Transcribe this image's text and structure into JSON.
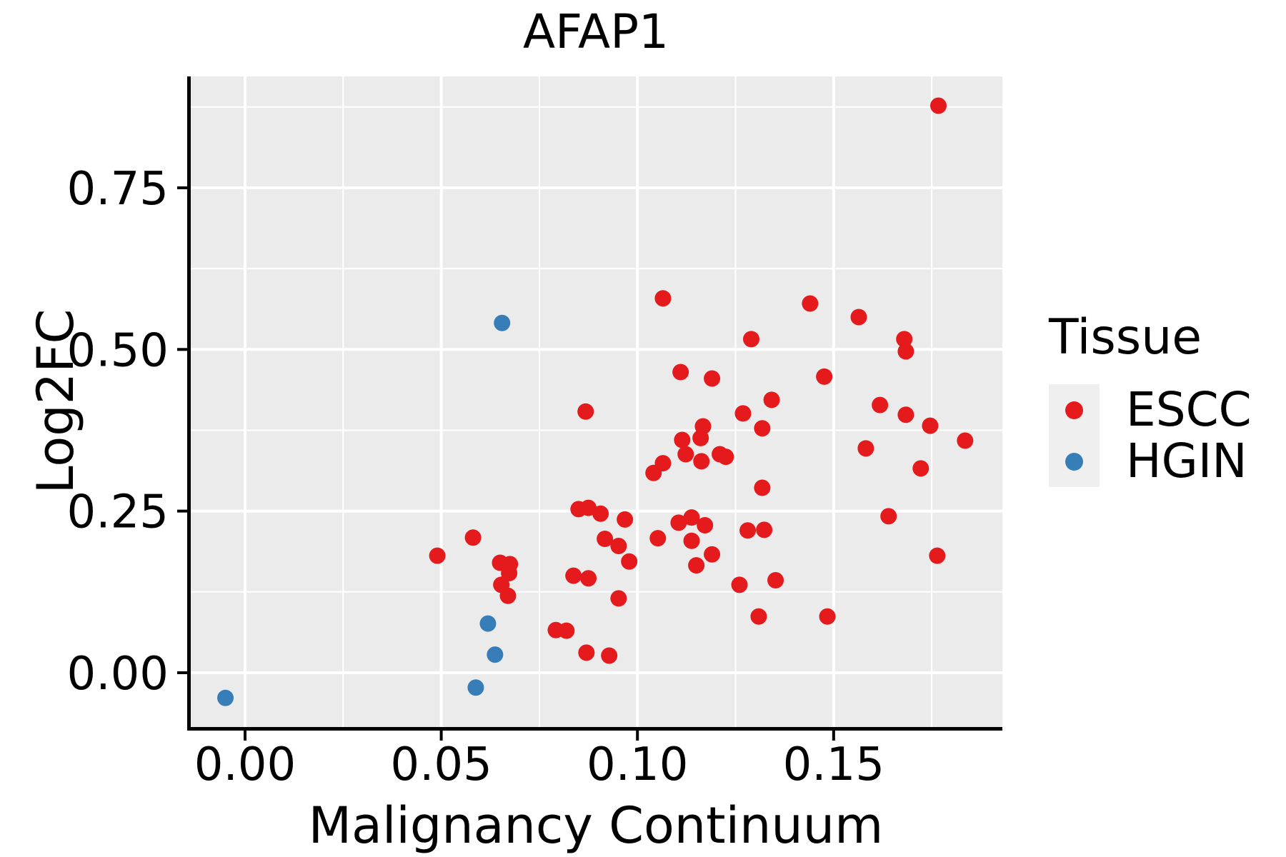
{
  "chart_data": {
    "type": "scatter",
    "title": "AFAP1",
    "xlabel": "Malignancy Continuum",
    "ylabel": "Log2FC",
    "x_axis": {
      "range": [
        -0.0142,
        0.193
      ],
      "ticks": [
        0,
        0.05,
        0.1,
        0.15
      ],
      "tick_labels": [
        "0.00",
        "0.05",
        "0.10",
        "0.15"
      ],
      "minor_ticks": [
        0.025,
        0.075,
        0.125,
        0.175
      ]
    },
    "y_axis": {
      "range": [
        -0.084,
        0.9223
      ],
      "ticks": [
        0,
        0.25,
        0.5,
        0.75
      ],
      "tick_labels": [
        "0.00",
        "0.25",
        "0.50",
        "0.75"
      ],
      "minor_ticks": [
        0.125,
        0.375,
        0.625,
        0.875
      ]
    },
    "legend": {
      "title": "Tissue",
      "entries": [
        {
          "label": "ESCC",
          "color": "#E41A1C"
        },
        {
          "label": "HGIN",
          "color": "#377EB8"
        }
      ]
    },
    "style": {
      "panel_bg": "#EBEBEB",
      "grid_color": "#FFFFFF",
      "axis_color": "#000000",
      "point_radius": 11.5
    },
    "series": [
      {
        "name": "ESCC",
        "color": "#E41A1C",
        "points": [
          [
            0.1767,
            0.877
          ],
          [
            0.1065,
            0.579
          ],
          [
            0.144,
            0.571
          ],
          [
            0.1564,
            0.55
          ],
          [
            0.168,
            0.516
          ],
          [
            0.1684,
            0.497
          ],
          [
            0.129,
            0.516
          ],
          [
            0.111,
            0.465
          ],
          [
            0.119,
            0.455
          ],
          [
            0.1476,
            0.458
          ],
          [
            0.1342,
            0.422
          ],
          [
            0.1618,
            0.414
          ],
          [
            0.1269,
            0.401
          ],
          [
            0.0868,
            0.404
          ],
          [
            0.1684,
            0.399
          ],
          [
            0.1746,
            0.382
          ],
          [
            0.1318,
            0.378
          ],
          [
            0.1167,
            0.381
          ],
          [
            0.1161,
            0.363
          ],
          [
            0.1114,
            0.36
          ],
          [
            0.1835,
            0.359
          ],
          [
            0.1582,
            0.347
          ],
          [
            0.1123,
            0.338
          ],
          [
            0.121,
            0.338
          ],
          [
            0.1225,
            0.334
          ],
          [
            0.1163,
            0.327
          ],
          [
            0.1065,
            0.324
          ],
          [
            0.1041,
            0.309
          ],
          [
            0.1722,
            0.316
          ],
          [
            0.1318,
            0.286
          ],
          [
            0.085,
            0.253
          ],
          [
            0.0875,
            0.255
          ],
          [
            0.0906,
            0.246
          ],
          [
            0.0968,
            0.237
          ],
          [
            0.164,
            0.242
          ],
          [
            0.1138,
            0.24
          ],
          [
            0.1105,
            0.232
          ],
          [
            0.1172,
            0.228
          ],
          [
            0.1281,
            0.22
          ],
          [
            0.1323,
            0.221
          ],
          [
            0.0917,
            0.207
          ],
          [
            0.0952,
            0.196
          ],
          [
            0.1052,
            0.208
          ],
          [
            0.1138,
            0.204
          ],
          [
            0.0581,
            0.209
          ],
          [
            0.049,
            0.181
          ],
          [
            0.0979,
            0.172
          ],
          [
            0.115,
            0.166
          ],
          [
            0.119,
            0.183
          ],
          [
            0.1764,
            0.181
          ],
          [
            0.065,
            0.17
          ],
          [
            0.0675,
            0.168
          ],
          [
            0.0673,
            0.154
          ],
          [
            0.0653,
            0.136
          ],
          [
            0.067,
            0.119
          ],
          [
            0.0837,
            0.15
          ],
          [
            0.0875,
            0.146
          ],
          [
            0.1352,
            0.143
          ],
          [
            0.126,
            0.136
          ],
          [
            0.0952,
            0.115
          ],
          [
            0.1309,
            0.087
          ],
          [
            0.1484,
            0.087
          ],
          [
            0.0792,
            0.066
          ],
          [
            0.0819,
            0.065
          ],
          [
            0.087,
            0.031
          ],
          [
            0.0928,
            0.0265
          ]
        ]
      },
      {
        "name": "HGIN",
        "color": "#377EB8",
        "points": [
          [
            0.0655,
            0.541
          ],
          [
            0.0619,
            0.076
          ],
          [
            0.0637,
            0.028
          ],
          [
            0.0588,
            -0.023
          ],
          [
            -0.005,
            -0.039
          ]
        ]
      }
    ]
  }
}
